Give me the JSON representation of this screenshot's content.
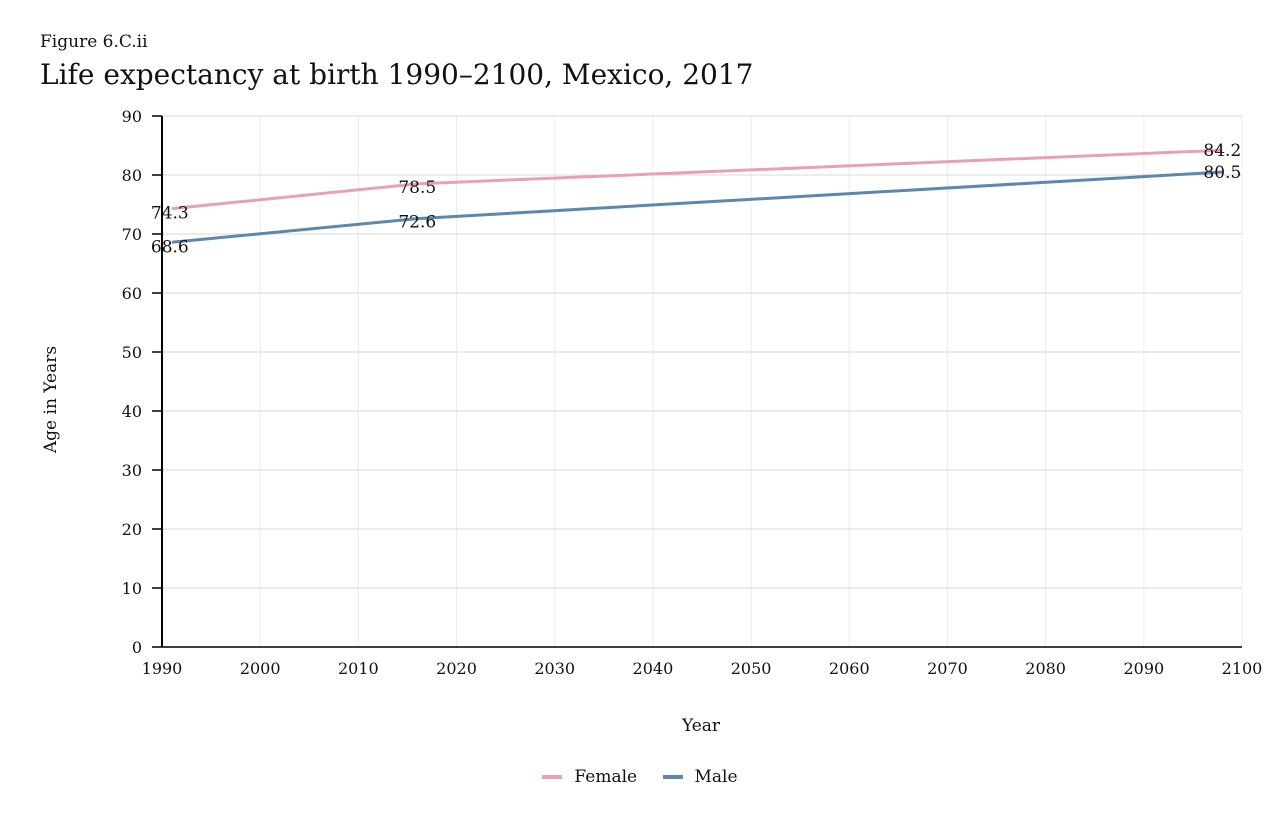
{
  "figure_label": "Figure 6.C.ii",
  "figure_title": "Life expectancy at birth 1990–2100, Mexico, 2017",
  "colors": {
    "female": "#e8a0b4",
    "male": "#5d87ab",
    "grid": "#d8d8d8",
    "axis": "#000000"
  },
  "legend": [
    {
      "name": "Female",
      "color": "#e8a0b4"
    },
    {
      "name": "Male",
      "color": "#5d87ab"
    }
  ],
  "chart_data": {
    "type": "line",
    "title": "",
    "xlabel": "Year",
    "ylabel": "Age in Years",
    "xlim": [
      1990,
      2100
    ],
    "ylim": [
      0,
      90
    ],
    "x_ticks": [
      1990,
      2000,
      2010,
      2020,
      2030,
      2040,
      2050,
      2060,
      2070,
      2080,
      2090,
      2100
    ],
    "y_ticks": [
      0,
      10,
      20,
      30,
      40,
      50,
      60,
      70,
      80,
      90
    ],
    "grid": true,
    "legend_position": "bottom",
    "series": [
      {
        "name": "Female",
        "color": "#e8a0b4",
        "points": [
          {
            "x": 1991,
            "y": 74.3
          },
          {
            "x": 2016,
            "y": 78.5
          },
          {
            "x": 2098,
            "y": 84.2
          }
        ],
        "labels": [
          "74.3",
          "78.5",
          "84.2"
        ]
      },
      {
        "name": "Male",
        "color": "#5d87ab",
        "points": [
          {
            "x": 1991,
            "y": 68.6
          },
          {
            "x": 2016,
            "y": 72.6
          },
          {
            "x": 2098,
            "y": 80.5
          }
        ],
        "labels": [
          "68.6",
          "72.6",
          "80.5"
        ]
      }
    ]
  }
}
